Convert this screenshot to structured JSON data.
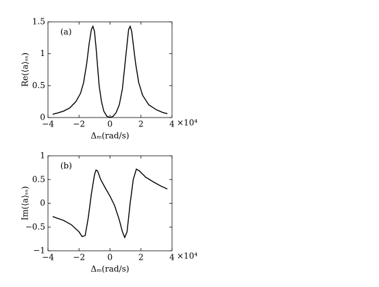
{
  "chart_data": [
    {
      "type": "line",
      "panel_label": "(a)",
      "xlabel": "Δₘ(rad/s)",
      "ylabel": "Re(⟨a⟩ₛₛ)",
      "x_multiplier": "×10⁴",
      "x": [
        -3.7,
        -3.4,
        -3.0,
        -2.6,
        -2.2,
        -1.9,
        -1.7,
        -1.5,
        -1.35,
        -1.2,
        -1.1,
        -1.0,
        -0.9,
        -0.8,
        -0.7,
        -0.55,
        -0.4,
        -0.2,
        0,
        0.2,
        0.4,
        0.6,
        0.8,
        0.95,
        1.1,
        1.2,
        1.3,
        1.4,
        1.5,
        1.65,
        1.85,
        2.1,
        2.5,
        3.0,
        3.4,
        3.7
      ],
      "series": [
        {
          "color": "#000000",
          "values": [
            0.05,
            0.07,
            0.1,
            0.15,
            0.25,
            0.38,
            0.55,
            0.85,
            1.15,
            1.38,
            1.43,
            1.35,
            1.1,
            0.8,
            0.5,
            0.25,
            0.1,
            0.02,
            0,
            0.02,
            0.08,
            0.2,
            0.45,
            0.8,
            1.15,
            1.38,
            1.43,
            1.35,
            1.15,
            0.85,
            0.55,
            0.35,
            0.2,
            0.12,
            0.08,
            0.06
          ]
        }
      ],
      "xlim": [
        -4,
        4
      ],
      "xticks": [
        -4,
        -2,
        0,
        2,
        4
      ],
      "ylim": [
        0,
        1.5
      ],
      "yticks": [
        0,
        0.5,
        1,
        1.5
      ]
    },
    {
      "type": "line",
      "panel_label": "(b)",
      "xlabel": "Δₘ(rad/s)",
      "ylabel": "Im(⟨a⟩ₛₛ)",
      "x_multiplier": "×10⁴",
      "x": [
        -3.7,
        -3.0,
        -2.5,
        -2.0,
        -1.8,
        -1.6,
        -1.4,
        -1.2,
        -1.0,
        -0.9,
        -0.8,
        -0.6,
        -0.3,
        0,
        0.3,
        0.6,
        0.8,
        0.95,
        1.1,
        1.3,
        1.5,
        1.7,
        1.9,
        2.3,
        2.8,
        3.3,
        3.7
      ],
      "series": [
        {
          "color": "#000000",
          "values": [
            -0.28,
            -0.36,
            -0.45,
            -0.6,
            -0.7,
            -0.68,
            -0.3,
            0.2,
            0.6,
            0.7,
            0.68,
            0.5,
            0.32,
            0.15,
            -0.05,
            -0.35,
            -0.6,
            -0.72,
            -0.6,
            0.0,
            0.5,
            0.72,
            0.68,
            0.55,
            0.45,
            0.36,
            0.3
          ]
        }
      ],
      "xlim": [
        -4,
        4
      ],
      "xticks": [
        -4,
        -2,
        0,
        2,
        4
      ],
      "ylim": [
        -1,
        1
      ],
      "yticks": [
        -1,
        -0.5,
        0,
        0.5,
        1
      ]
    }
  ]
}
